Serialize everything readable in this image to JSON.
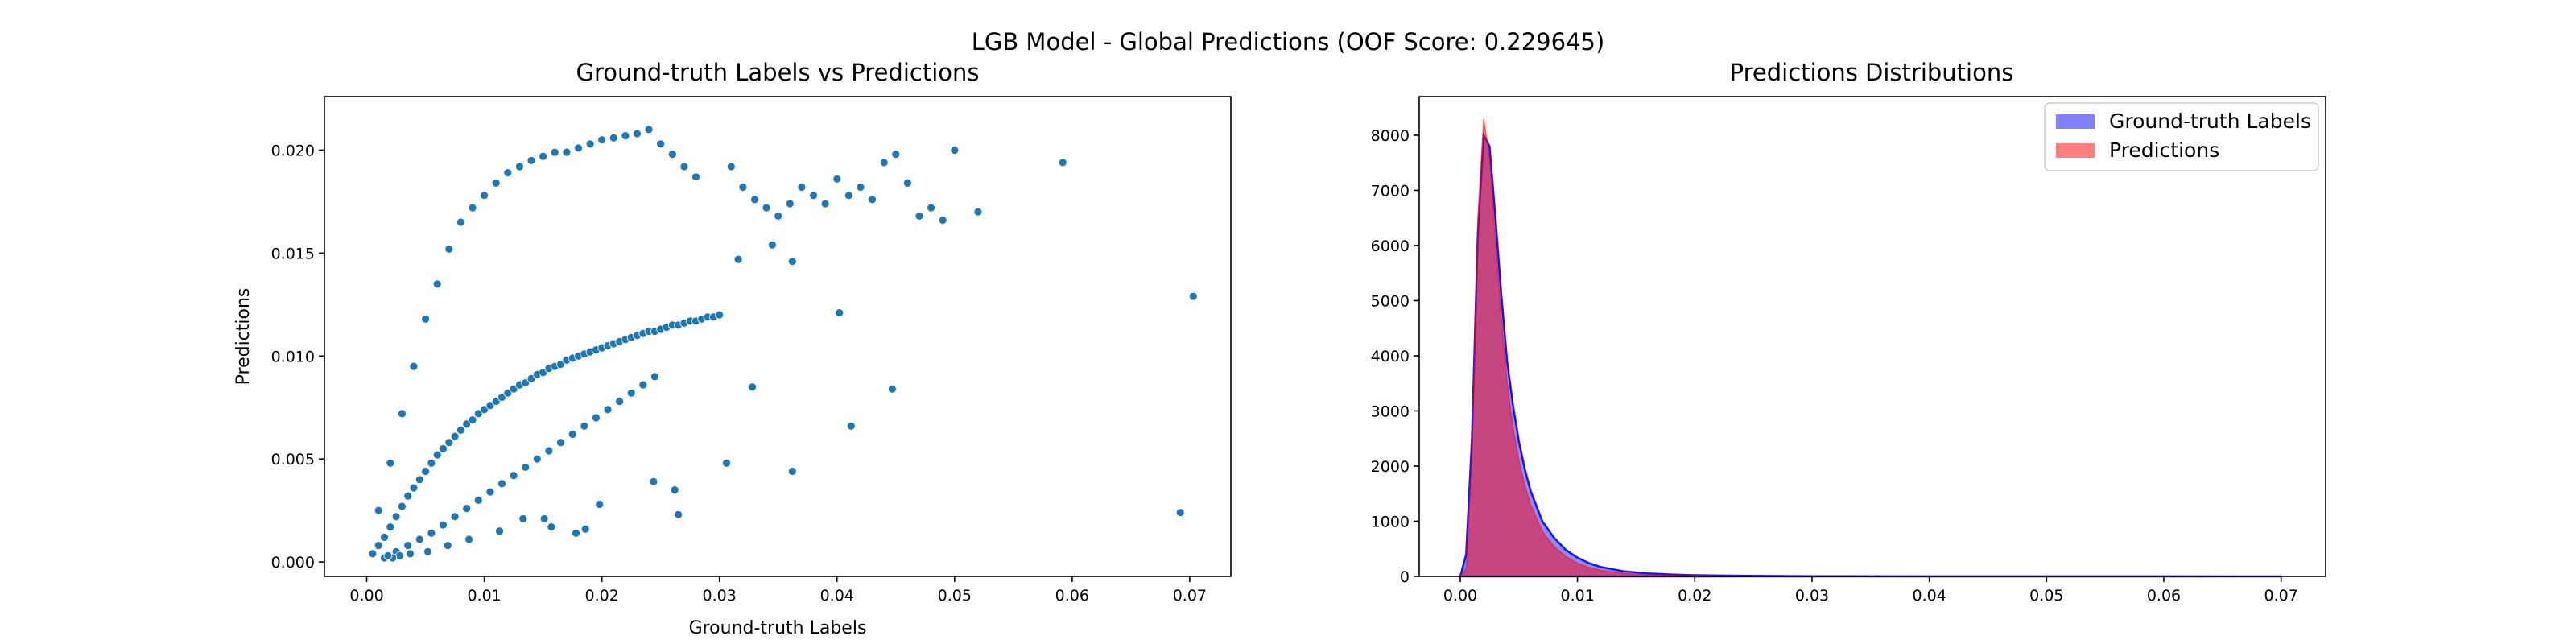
{
  "suptitle": "LGB Model - Global Predictions (OOF Score: 0.229645)",
  "chart_data": [
    {
      "type": "scatter",
      "title": "Ground-truth Labels vs Predictions",
      "xlabel": "Ground-truth Labels",
      "ylabel": "Predictions",
      "xlim": [
        -0.0036,
        0.0735
      ],
      "ylim": [
        -0.0007,
        0.0226
      ],
      "xticks": [
        0.0,
        0.01,
        0.02,
        0.03,
        0.04,
        0.05,
        0.06,
        0.07
      ],
      "xtick_labels": [
        "0.00",
        "0.01",
        "0.02",
        "0.03",
        "0.04",
        "0.05",
        "0.06",
        "0.07"
      ],
      "yticks": [
        0.0,
        0.005,
        0.01,
        0.015,
        0.02
      ],
      "ytick_labels": [
        "0.000",
        "0.005",
        "0.010",
        "0.015",
        "0.020"
      ],
      "grid": false,
      "point_color": "#1f77b4",
      "point_edge_color": "#ffffff",
      "series": [
        {
          "x": [
            0.0005,
            0.001,
            0.0015,
            0.002,
            0.0025,
            0.003,
            0.0035,
            0.004,
            0.0045,
            0.005,
            0.0055,
            0.006,
            0.0065,
            0.007,
            0.0075,
            0.008,
            0.0085,
            0.009,
            0.0095,
            0.01,
            0.0105,
            0.011,
            0.0115,
            0.012,
            0.0125,
            0.013,
            0.0135,
            0.014,
            0.0145,
            0.015,
            0.0155,
            0.016,
            0.0165,
            0.017,
            0.0175,
            0.018,
            0.0185,
            0.019,
            0.0195,
            0.02,
            0.0205,
            0.021,
            0.0215,
            0.022,
            0.0225,
            0.023,
            0.0235,
            0.024,
            0.0245,
            0.025,
            0.0255,
            0.026,
            0.0265,
            0.027,
            0.0275,
            0.028,
            0.0285,
            0.029,
            0.0295,
            0.03,
            0.001,
            0.002,
            0.003,
            0.004,
            0.005,
            0.006,
            0.007,
            0.008,
            0.009,
            0.01,
            0.011,
            0.012,
            0.013,
            0.014,
            0.015,
            0.016,
            0.017,
            0.018,
            0.019,
            0.02,
            0.021,
            0.022,
            0.023,
            0.024,
            0.025,
            0.026,
            0.027,
            0.028,
            0.0015,
            0.0025,
            0.0035,
            0.0045,
            0.0055,
            0.0065,
            0.0075,
            0.0085,
            0.0095,
            0.0105,
            0.0115,
            0.0125,
            0.0135,
            0.0145,
            0.0155,
            0.0165,
            0.0175,
            0.0185,
            0.0195,
            0.0205,
            0.0215,
            0.0225,
            0.0235,
            0.0245,
            0.031,
            0.032,
            0.033,
            0.034,
            0.035,
            0.036,
            0.037,
            0.038,
            0.039,
            0.04,
            0.041,
            0.042,
            0.043,
            0.044,
            0.045,
            0.046,
            0.047,
            0.048,
            0.049,
            0.05,
            0.052,
            0.0592,
            0.0703,
            0.0692,
            0.0447,
            0.0412,
            0.0362,
            0.0328,
            0.0306,
            0.0265,
            0.0178,
            0.0186,
            0.0157,
            0.0133,
            0.0244,
            0.0362,
            0.0316,
            0.0345,
            0.0402,
            0.0262,
            0.0198,
            0.0151,
            0.0113,
            0.0087,
            0.0069,
            0.0052,
            0.0037,
            0.0028,
            0.0022,
            0.0018
          ],
          "y": [
            0.0004,
            0.0008,
            0.0012,
            0.0017,
            0.0022,
            0.0027,
            0.0032,
            0.0036,
            0.004,
            0.0044,
            0.0048,
            0.0052,
            0.0055,
            0.0058,
            0.0061,
            0.0064,
            0.0067,
            0.0069,
            0.0072,
            0.0074,
            0.0076,
            0.0078,
            0.008,
            0.0082,
            0.0084,
            0.0086,
            0.0087,
            0.0089,
            0.0091,
            0.0092,
            0.0094,
            0.0095,
            0.0096,
            0.0098,
            0.0099,
            0.01,
            0.0101,
            0.0102,
            0.0103,
            0.0104,
            0.0105,
            0.0106,
            0.0107,
            0.0108,
            0.0109,
            0.011,
            0.0111,
            0.0112,
            0.0112,
            0.0113,
            0.0114,
            0.0115,
            0.0115,
            0.0116,
            0.0117,
            0.0117,
            0.0118,
            0.0119,
            0.0119,
            0.012,
            0.0025,
            0.0048,
            0.0072,
            0.0095,
            0.0118,
            0.0135,
            0.0152,
            0.0165,
            0.0172,
            0.0178,
            0.0184,
            0.0189,
            0.0192,
            0.0195,
            0.0197,
            0.0199,
            0.0199,
            0.0201,
            0.0203,
            0.0205,
            0.0206,
            0.0207,
            0.0208,
            0.021,
            0.0203,
            0.0198,
            0.0192,
            0.0187,
            0.0002,
            0.0005,
            0.0008,
            0.0011,
            0.0014,
            0.0018,
            0.0022,
            0.0026,
            0.003,
            0.0034,
            0.0038,
            0.0042,
            0.0046,
            0.005,
            0.0054,
            0.0058,
            0.0062,
            0.0066,
            0.007,
            0.0074,
            0.0078,
            0.0082,
            0.0086,
            0.009,
            0.0192,
            0.0182,
            0.0176,
            0.0172,
            0.0168,
            0.0174,
            0.0182,
            0.0178,
            0.0174,
            0.0186,
            0.0178,
            0.0182,
            0.0176,
            0.0194,
            0.0198,
            0.0184,
            0.0168,
            0.0172,
            0.0166,
            0.02,
            0.017,
            0.0194,
            0.0129,
            0.0024,
            0.0084,
            0.0066,
            0.0044,
            0.0085,
            0.0048,
            0.0023,
            0.0014,
            0.0016,
            0.0017,
            0.0021,
            0.0039,
            0.0146,
            0.0147,
            0.0154,
            0.0121,
            0.0035,
            0.0028,
            0.0021,
            0.0015,
            0.0011,
            0.0008,
            0.0005,
            0.0004,
            0.0003,
            0.0002,
            0.0003
          ]
        }
      ]
    },
    {
      "type": "histogram",
      "title": "Predictions Distributions",
      "xlabel": "",
      "ylabel": "",
      "xlim": [
        -0.0035,
        0.0738
      ],
      "ylim": [
        0,
        8700
      ],
      "xticks": [
        0.0,
        0.01,
        0.02,
        0.03,
        0.04,
        0.05,
        0.06,
        0.07
      ],
      "xtick_labels": [
        "0.00",
        "0.01",
        "0.02",
        "0.03",
        "0.04",
        "0.05",
        "0.06",
        "0.07"
      ],
      "yticks": [
        0,
        1000,
        2000,
        3000,
        4000,
        5000,
        6000,
        7000,
        8000
      ],
      "ytick_labels": [
        "0",
        "1000",
        "2000",
        "3000",
        "4000",
        "5000",
        "6000",
        "7000",
        "8000"
      ],
      "grid": false,
      "legend_position": "top-right",
      "series": [
        {
          "name": "Ground-truth Labels",
          "color": "#0000ff",
          "x": [
            0.0,
            0.0005,
            0.001,
            0.0015,
            0.002,
            0.0025,
            0.003,
            0.0035,
            0.004,
            0.0045,
            0.005,
            0.0055,
            0.006,
            0.007,
            0.008,
            0.009,
            0.01,
            0.011,
            0.012,
            0.014,
            0.016,
            0.018,
            0.02,
            0.025,
            0.03,
            0.04,
            0.05,
            0.06,
            0.07
          ],
          "values": [
            0,
            400,
            2500,
            6200,
            8000,
            7800,
            6500,
            5100,
            3900,
            3100,
            2450,
            1950,
            1550,
            1000,
            700,
            480,
            340,
            240,
            170,
            90,
            55,
            35,
            22,
            10,
            5,
            2,
            1,
            1,
            0
          ]
        },
        {
          "name": "Predictions",
          "color": "#ff0000",
          "x": [
            0.0,
            0.0005,
            0.001,
            0.0015,
            0.002,
            0.0025,
            0.003,
            0.0035,
            0.004,
            0.0045,
            0.005,
            0.0055,
            0.006,
            0.007,
            0.008,
            0.009,
            0.01,
            0.011,
            0.012,
            0.014,
            0.016,
            0.018,
            0.02,
            0.025,
            0.03,
            0.04,
            0.05,
            0.06,
            0.07
          ],
          "values": [
            0,
            150,
            2200,
            6500,
            8300,
            7600,
            6100,
            4700,
            3500,
            2700,
            2100,
            1650,
            1300,
            820,
            540,
            360,
            240,
            160,
            110,
            55,
            30,
            18,
            10,
            4,
            1,
            0,
            0,
            0,
            0
          ]
        }
      ]
    }
  ]
}
